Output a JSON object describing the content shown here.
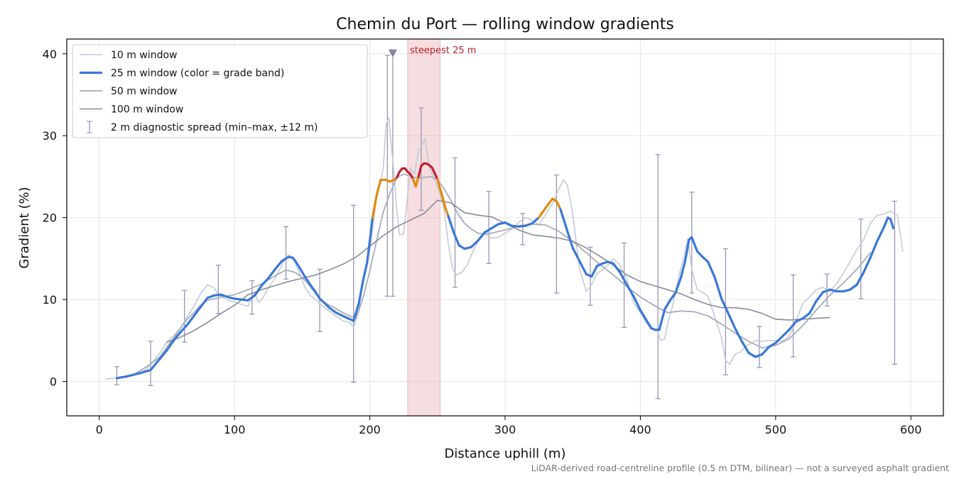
{
  "chart_data": {
    "type": "line",
    "title": "Chemin du Port — rolling window gradients",
    "xlabel": "Distance uphill (m)",
    "ylabel": "Gradient (%)",
    "xlim": [
      -24,
      624
    ],
    "ylim": [
      -4.2,
      41.8
    ],
    "xticks": [
      0,
      100,
      200,
      300,
      400,
      500,
      600
    ],
    "yticks": [
      0,
      10,
      20,
      30,
      40
    ],
    "grid": true,
    "legend_position": "upper-left",
    "footnote": "LiDAR-derived road-centreline profile (0.5 m DTM, bilinear) — not a surveyed asphalt gradient",
    "highlight": {
      "x0": 228,
      "x1": 252,
      "label": "steepest 25 m",
      "color": "#e8a6ae"
    },
    "marker": {
      "x": 217,
      "y": 40,
      "color": "#8a7fa8"
    },
    "grade_band_colors": {
      "normal": "#3a78d8",
      "steep": "#e08a10",
      "steepest": "#c0202e"
    },
    "grade_band_thresholds": [
      20,
      25
    ],
    "series": [
      {
        "name": "10 m window",
        "color": "#c4cad6",
        "width": 1.6,
        "x": [
          5,
          12,
          20,
          28,
          35,
          40,
          45,
          50,
          55,
          60,
          65,
          70,
          75,
          80,
          85,
          88,
          92,
          95,
          100,
          105,
          110,
          115,
          118,
          121,
          125,
          130,
          135,
          138,
          141,
          144,
          148,
          152,
          156,
          160,
          165,
          170,
          175,
          180,
          185,
          188,
          192,
          195,
          200,
          203,
          205,
          208,
          210,
          212,
          214,
          216,
          218,
          220,
          222,
          225,
          228,
          230,
          233,
          236,
          238,
          241,
          244,
          248,
          252,
          255,
          258,
          261,
          264,
          268,
          272,
          276,
          280,
          285,
          290,
          295,
          300,
          305,
          310,
          315,
          320,
          325,
          330,
          333,
          336,
          340,
          343,
          346,
          350,
          355,
          360,
          364,
          368,
          372,
          376,
          380,
          385,
          390,
          395,
          400,
          404,
          408,
          412,
          415,
          418,
          421,
          424,
          428,
          432,
          435,
          438,
          442,
          446,
          450,
          455,
          460,
          463,
          466,
          470,
          474,
          478,
          482,
          486,
          490,
          495,
          500,
          505,
          510,
          515,
          520,
          525,
          530,
          535,
          540,
          545,
          550,
          555,
          560,
          565,
          570,
          575,
          580,
          585,
          590,
          594
        ],
        "y": [
          0.3,
          0.4,
          0.6,
          0.9,
          1.5,
          2.5,
          3.5,
          4.8,
          5.6,
          6.5,
          7.9,
          9.2,
          10.7,
          11.8,
          11.4,
          10.6,
          10.2,
          9.9,
          9.7,
          9.4,
          9.2,
          10.8,
          9.6,
          10.2,
          11.4,
          12.6,
          14.2,
          15.3,
          15.4,
          14.8,
          13.2,
          11.5,
          10.5,
          10.0,
          9.2,
          8.6,
          8.0,
          7.4,
          7.2,
          6.6,
          8.8,
          12.6,
          16.0,
          19.8,
          22.5,
          24.3,
          26.1,
          31.3,
          32.2,
          28.7,
          25.2,
          20.7,
          17.9,
          18.0,
          22.8,
          26.1,
          25.3,
          28.1,
          28.7,
          29.6,
          26.0,
          24.7,
          22.8,
          20.9,
          16.9,
          13.9,
          13.0,
          13.3,
          14.2,
          15.8,
          17.1,
          18.1,
          17.5,
          17.6,
          18.1,
          18.6,
          19.4,
          20.0,
          19.7,
          19.1,
          20.4,
          21.2,
          22.0,
          23.6,
          24.6,
          24.0,
          20.5,
          13.8,
          11.0,
          11.8,
          13.2,
          13.6,
          14.2,
          15.0,
          14.2,
          12.5,
          9.7,
          8.4,
          7.3,
          6.4,
          6.4,
          5.0,
          5.2,
          7.6,
          9.3,
          12.6,
          15.1,
          17.4,
          13.7,
          11.2,
          10.9,
          10.4,
          7.9,
          5.3,
          2.6,
          2.1,
          3.3,
          3.6,
          4.3,
          4.7,
          5.0,
          4.9,
          5.0,
          5.0,
          4.9,
          5.5,
          7.3,
          9.5,
          10.3,
          11.2,
          11.5,
          11.0,
          11.9,
          13.2,
          14.6,
          16.1,
          17.3,
          19.3,
          20.3,
          20.4,
          20.8,
          20.3,
          15.9
        ]
      },
      {
        "name": "25 m window (color = grade band)",
        "color": "#3a78d8",
        "width": 3.2,
        "banded": true,
        "x": [
          13,
          20,
          30,
          38,
          45,
          50,
          55,
          60,
          65,
          70,
          75,
          80,
          85,
          90,
          95,
          100,
          105,
          110,
          115,
          120,
          125,
          130,
          135,
          140,
          143,
          145,
          148,
          152,
          156,
          160,
          163,
          167,
          170,
          175,
          180,
          184,
          188,
          192,
          195,
          198,
          200,
          202,
          205,
          208,
          212,
          215,
          218,
          220,
          222,
          224,
          226,
          228,
          230,
          232,
          234,
          236,
          238,
          240,
          242,
          244,
          246,
          248,
          250,
          252,
          254,
          256,
          258,
          262,
          266,
          270,
          275,
          280,
          285,
          290,
          295,
          300,
          305,
          310,
          315,
          320,
          325,
          330,
          335,
          338,
          341,
          345,
          350,
          355,
          360,
          364,
          368,
          372,
          376,
          380,
          385,
          390,
          395,
          400,
          404,
          408,
          411,
          414,
          418,
          422,
          426,
          430,
          433,
          436,
          438,
          442,
          446,
          450,
          455,
          460,
          465,
          470,
          475,
          480,
          485,
          490,
          495,
          500,
          505,
          510,
          515,
          520,
          525,
          530,
          535,
          540,
          545,
          550,
          555,
          560,
          565,
          570,
          575,
          580,
          583,
          585,
          587
        ],
        "y": [
          0.4,
          0.6,
          1.0,
          1.4,
          2.8,
          3.8,
          5.0,
          6.0,
          6.9,
          8.0,
          9.1,
          10.2,
          10.5,
          10.6,
          10.3,
          10.1,
          10.0,
          9.9,
          10.5,
          11.7,
          12.6,
          13.7,
          14.7,
          15.2,
          15.1,
          14.7,
          13.9,
          12.8,
          11.8,
          10.9,
          10.1,
          9.5,
          9.0,
          8.4,
          8.0,
          7.7,
          7.4,
          9.6,
          12.3,
          14.5,
          17.1,
          20.0,
          22.7,
          24.6,
          24.6,
          24.4,
          24.6,
          24.9,
          25.6,
          26.0,
          26.0,
          25.6,
          25.3,
          24.7,
          23.8,
          25.0,
          26.3,
          26.6,
          26.6,
          26.4,
          26.1,
          25.4,
          24.7,
          23.5,
          22.4,
          21.1,
          20.2,
          18.2,
          16.6,
          16.2,
          16.4,
          17.2,
          18.2,
          18.7,
          19.2,
          19.4,
          19.0,
          18.9,
          19.0,
          19.3,
          20.0,
          21.2,
          22.3,
          22.0,
          21.0,
          18.9,
          16.3,
          14.7,
          13.1,
          12.8,
          14.1,
          14.4,
          14.6,
          14.4,
          13.3,
          11.8,
          10.4,
          8.7,
          7.6,
          6.5,
          6.3,
          6.3,
          8.8,
          9.9,
          10.8,
          12.7,
          14.6,
          17.3,
          17.6,
          15.9,
          15.2,
          14.6,
          12.7,
          10.1,
          8.3,
          6.5,
          4.9,
          3.5,
          3.0,
          3.3,
          4.2,
          4.7,
          5.5,
          6.3,
          7.3,
          7.7,
          8.3,
          9.8,
          10.9,
          11.2,
          11.0,
          11.0,
          11.2,
          11.8,
          13.3,
          15.1,
          17.1,
          18.8,
          20.0,
          19.8,
          18.7
        ]
      },
      {
        "name": "50 m window",
        "color": "#a6acba",
        "width": 1.8,
        "x": [
          25,
          35,
          45,
          50,
          55,
          60,
          65,
          70,
          75,
          80,
          85,
          90,
          100,
          110,
          120,
          130,
          138,
          145,
          150,
          155,
          160,
          165,
          170,
          175,
          180,
          185,
          190,
          195,
          200,
          205,
          210,
          215,
          220,
          225,
          230,
          235,
          240,
          245,
          250,
          255,
          260,
          265,
          270,
          275,
          280,
          285,
          290,
          295,
          300,
          305,
          310,
          320,
          330,
          340,
          350,
          360,
          370,
          380,
          390,
          400,
          410,
          420,
          430,
          440,
          450,
          460,
          470,
          480,
          490,
          500,
          510,
          520,
          530,
          540,
          550,
          560,
          570
        ],
        "y": [
          0.8,
          1.8,
          3.0,
          4.2,
          5.3,
          6.5,
          7.6,
          8.4,
          9.3,
          9.9,
          10.1,
          10.3,
          10.6,
          11.2,
          11.9,
          12.9,
          13.6,
          13.3,
          12.7,
          11.8,
          10.7,
          9.8,
          9.3,
          8.9,
          8.4,
          8.0,
          7.7,
          10.2,
          13.5,
          17.2,
          20.7,
          23.0,
          24.9,
          25.3,
          25.1,
          24.8,
          24.9,
          25.0,
          24.6,
          23.5,
          22.1,
          20.5,
          19.3,
          18.6,
          18.1,
          18.0,
          18.1,
          18.3,
          18.5,
          18.7,
          19.0,
          19.2,
          19.1,
          18.3,
          17.1,
          15.7,
          14.3,
          13.0,
          11.6,
          10.3,
          9.3,
          8.4,
          8.6,
          8.5,
          8.0,
          7.0,
          5.9,
          4.9,
          4.1,
          4.4,
          5.2,
          6.8,
          8.7,
          10.5,
          12.0,
          13.7,
          15.7
        ]
      },
      {
        "name": "100 m window",
        "color": "#858c9a",
        "width": 1.6,
        "x": [
          50,
          60,
          70,
          80,
          90,
          100,
          110,
          120,
          130,
          140,
          150,
          160,
          170,
          180,
          190,
          200,
          210,
          220,
          230,
          240,
          250,
          260,
          270,
          280,
          290,
          300,
          310,
          320,
          330,
          340,
          350,
          360,
          370,
          380,
          390,
          400,
          410,
          420,
          430,
          440,
          450,
          460,
          470,
          480,
          490,
          500,
          510,
          520,
          530,
          540
        ],
        "y": [
          4.8,
          5.4,
          6.2,
          7.2,
          8.3,
          9.3,
          10.6,
          11.2,
          11.7,
          12.2,
          12.6,
          13.0,
          13.6,
          14.3,
          15.2,
          16.5,
          17.8,
          18.9,
          19.7,
          20.5,
          22.1,
          21.8,
          20.6,
          20.3,
          20.1,
          19.3,
          18.5,
          17.9,
          17.7,
          17.5,
          17.1,
          16.3,
          15.3,
          14.2,
          13.0,
          12.2,
          11.7,
          11.2,
          10.7,
          10.0,
          9.4,
          9.0,
          9.0,
          8.8,
          8.3,
          7.6,
          7.5,
          7.6,
          7.7,
          7.8
        ]
      }
    ],
    "error_bars": {
      "name": "2 m diagnostic spread (min–max, ±12 m)",
      "color": "#9a94b8",
      "points": [
        {
          "x": 13,
          "y": 0.5,
          "min": -0.4,
          "max": 1.8
        },
        {
          "x": 38,
          "y": 1.7,
          "min": -0.5,
          "max": 4.9
        },
        {
          "x": 63,
          "y": 7.0,
          "min": 4.8,
          "max": 11.1
        },
        {
          "x": 88,
          "y": 10.6,
          "min": 8.3,
          "max": 14.2
        },
        {
          "x": 113,
          "y": 10.2,
          "min": 8.2,
          "max": 12.3
        },
        {
          "x": 138,
          "y": 15.0,
          "min": 12.5,
          "max": 18.9
        },
        {
          "x": 163,
          "y": 10.1,
          "min": 6.1,
          "max": 13.7
        },
        {
          "x": 188,
          "y": 7.5,
          "min": -0.1,
          "max": 21.5
        },
        {
          "x": 213,
          "y": 24.5,
          "min": 10.4,
          "max": 39.8
        },
        {
          "x": 217,
          "y": 24.6,
          "min": 10.4,
          "max": 40.0
        },
        {
          "x": 238,
          "y": 26.3,
          "min": 20.9,
          "max": 33.4
        },
        {
          "x": 263,
          "y": 18.2,
          "min": 11.5,
          "max": 27.3
        },
        {
          "x": 288,
          "y": 18.5,
          "min": 14.4,
          "max": 23.2
        },
        {
          "x": 313,
          "y": 19.0,
          "min": 16.7,
          "max": 20.5
        },
        {
          "x": 338,
          "y": 22.0,
          "min": 10.8,
          "max": 25.2
        },
        {
          "x": 363,
          "y": 13.0,
          "min": 9.3,
          "max": 16.4
        },
        {
          "x": 388,
          "y": 13.3,
          "min": 6.6,
          "max": 16.9
        },
        {
          "x": 413,
          "y": 6.3,
          "min": -2.1,
          "max": 27.7
        },
        {
          "x": 438,
          "y": 17.3,
          "min": 10.8,
          "max": 23.1
        },
        {
          "x": 463,
          "y": 10.1,
          "min": 0.8,
          "max": 16.2
        },
        {
          "x": 488,
          "y": 3.3,
          "min": 1.7,
          "max": 6.7
        },
        {
          "x": 513,
          "y": 7.3,
          "min": 3.0,
          "max": 13.0
        },
        {
          "x": 538,
          "y": 11.0,
          "min": 9.2,
          "max": 13.1
        },
        {
          "x": 563,
          "y": 13.3,
          "min": 10.1,
          "max": 19.8
        },
        {
          "x": 588,
          "y": 18.5,
          "min": 2.1,
          "max": 22.0
        }
      ]
    }
  }
}
